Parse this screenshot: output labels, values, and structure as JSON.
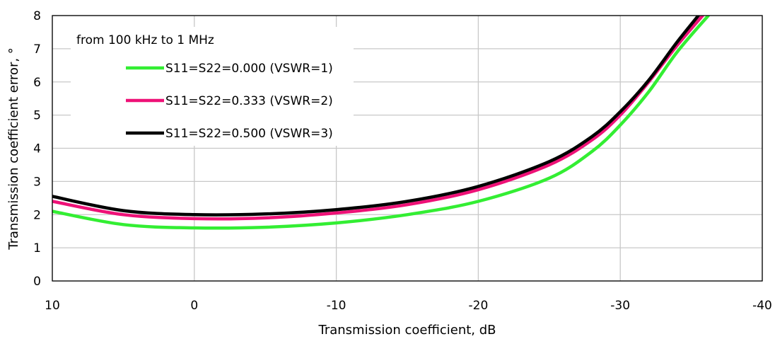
{
  "chart_data": {
    "type": "line",
    "title": "",
    "xlabel": "Transmission coefficient, dB",
    "ylabel": "Transmission coefficient error, °",
    "annotation": "from 100 kHz to 1 MHz",
    "xlim": [
      10,
      -40
    ],
    "ylim": [
      0,
      8
    ],
    "x_ticks": [
      10,
      0,
      -10,
      -20,
      -30,
      -40
    ],
    "x_tick_labels": [
      "10",
      "0",
      "-10",
      "-20",
      "-30",
      "-40"
    ],
    "y_ticks": [
      0,
      1,
      2,
      3,
      4,
      5,
      6,
      7,
      8
    ],
    "y_tick_labels": [
      "0",
      "1",
      "2",
      "3",
      "4",
      "5",
      "6",
      "7",
      "8"
    ],
    "grid": true,
    "legend_position": "top-left",
    "series": [
      {
        "name": "S11=S22=0.000 (VSWR=1)",
        "color": "#33ee33",
        "x": [
          10,
          5,
          0,
          -5,
          -10,
          -15,
          -20,
          -25,
          -28,
          -30,
          -32,
          -34,
          -36.2
        ],
        "y": [
          2.1,
          1.7,
          1.6,
          1.62,
          1.75,
          2.0,
          2.4,
          3.1,
          3.9,
          4.7,
          5.7,
          6.9,
          8.0
        ]
      },
      {
        "name": "S11=S22=0.333 (VSWR=2)",
        "color": "#ee1177",
        "x": [
          10,
          5,
          0,
          -5,
          -10,
          -15,
          -20,
          -25,
          -28,
          -30,
          -32,
          -34,
          -35.8
        ],
        "y": [
          2.4,
          2.0,
          1.88,
          1.9,
          2.05,
          2.3,
          2.75,
          3.5,
          4.25,
          5.0,
          6.0,
          7.1,
          8.0
        ]
      },
      {
        "name": "S11=S22=0.500 (VSWR=3)",
        "color": "#000000",
        "x": [
          10,
          5,
          0,
          -5,
          -10,
          -15,
          -20,
          -25,
          -28,
          -30,
          -32,
          -34,
          -35.5
        ],
        "y": [
          2.55,
          2.12,
          2.0,
          2.02,
          2.15,
          2.4,
          2.85,
          3.6,
          4.35,
          5.1,
          6.05,
          7.2,
          8.0
        ]
      }
    ]
  }
}
